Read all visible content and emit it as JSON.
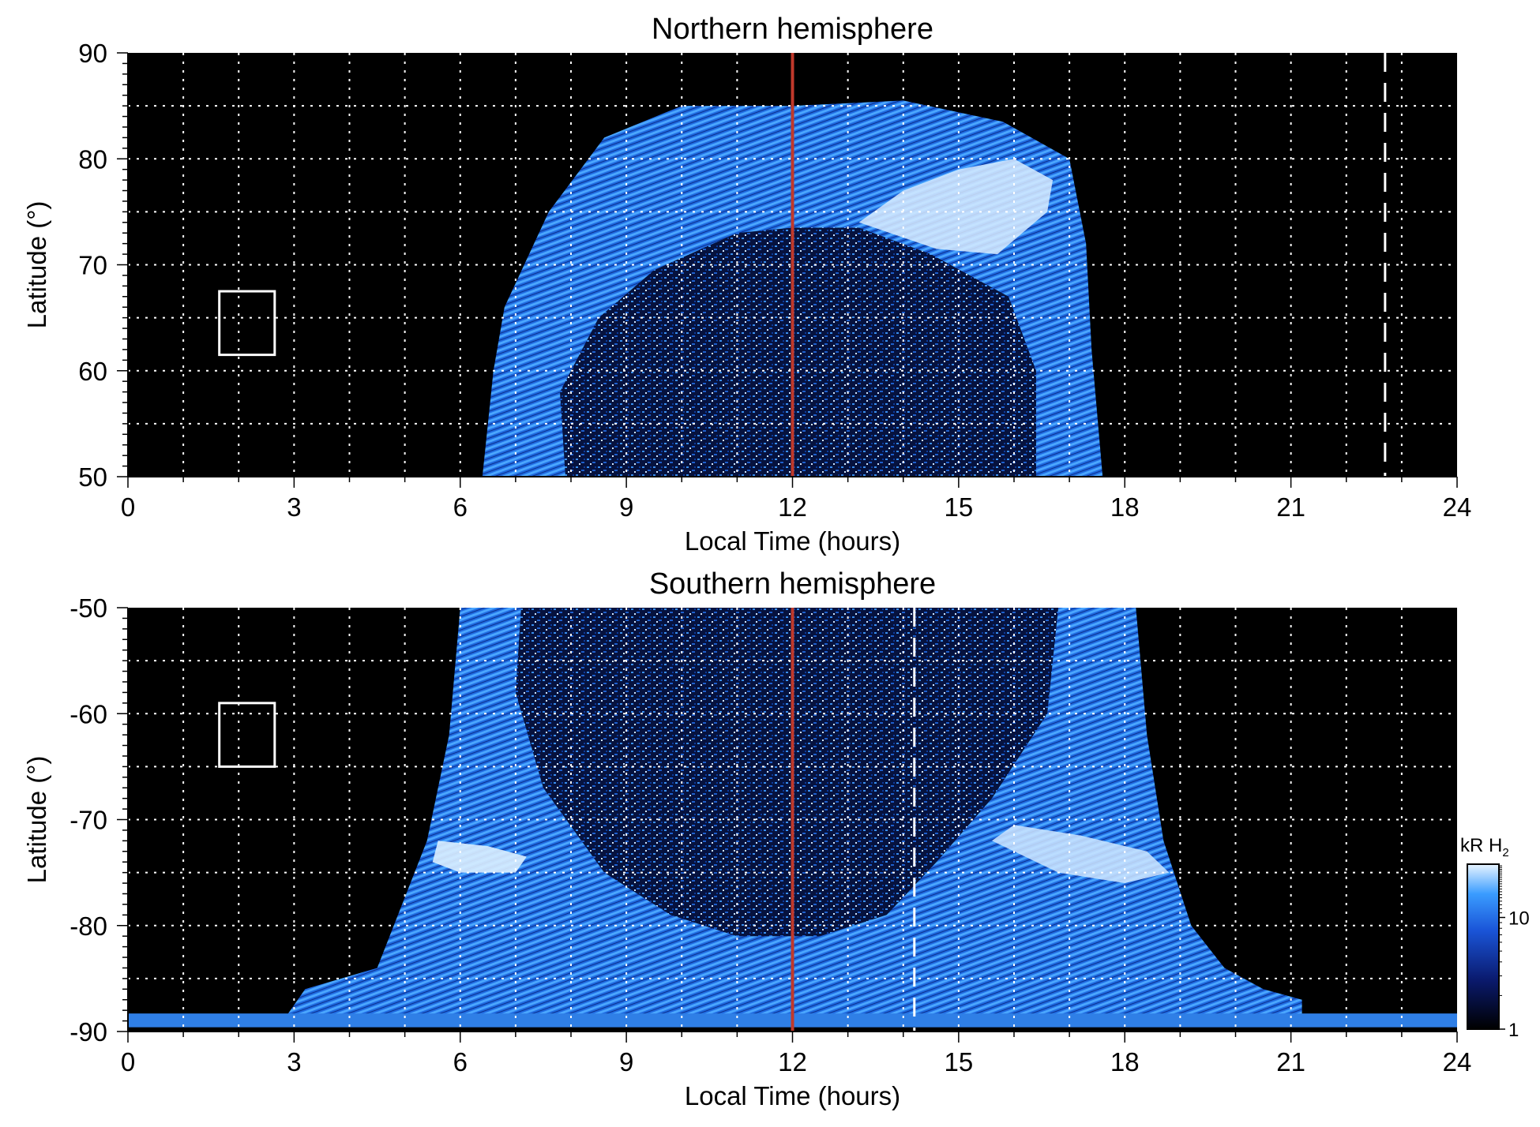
{
  "chart_data": [
    {
      "type": "heatmap",
      "title": "Northern hemisphere",
      "xlabel": "Local Time (hours)",
      "ylabel": "Latitude (°)",
      "xlim": [
        0,
        24
      ],
      "ylim": [
        50,
        90
      ],
      "x_ticks": [
        "0",
        "3",
        "6",
        "9",
        "12",
        "15",
        "18",
        "21",
        "24"
      ],
      "y_ticks": [
        "50",
        "60",
        "70",
        "80",
        "90"
      ],
      "grid": true,
      "noon_line_x": 12,
      "noon_line_color": "#c0392b",
      "dashed_line_x": 22.7,
      "box": {
        "x": [
          1.65,
          2.65
        ],
        "y": [
          61.5,
          67.5
        ]
      },
      "emission_envelope": {
        "outer": [
          [
            6.4,
            50
          ],
          [
            6.6,
            60
          ],
          [
            6.8,
            66
          ],
          [
            7.6,
            75
          ],
          [
            8.6,
            82
          ],
          [
            10,
            85
          ],
          [
            12,
            85
          ],
          [
            14,
            85.5
          ],
          [
            15.8,
            83.5
          ],
          [
            17,
            80
          ],
          [
            17.3,
            72
          ],
          [
            17.4,
            62
          ],
          [
            17.6,
            50
          ]
        ],
        "inner_dark": [
          [
            7.9,
            50
          ],
          [
            7.8,
            58
          ],
          [
            8.5,
            65
          ],
          [
            9.5,
            69.5
          ],
          [
            11,
            73
          ],
          [
            12,
            73.5
          ],
          [
            13.2,
            73.5
          ],
          [
            14.5,
            71
          ],
          [
            15.9,
            67
          ],
          [
            16.4,
            60
          ],
          [
            16.4,
            50
          ]
        ],
        "bright_oval": [
          [
            13.2,
            74
          ],
          [
            14,
            77
          ],
          [
            15,
            79
          ],
          [
            16,
            80
          ],
          [
            16.7,
            78
          ],
          [
            16.6,
            75
          ],
          [
            15.7,
            71
          ],
          [
            14.6,
            71.5
          ]
        ]
      }
    },
    {
      "type": "heatmap",
      "title": "Southern hemisphere",
      "xlabel": "Local Time (hours)",
      "ylabel": "Latitude (°)",
      "xlim": [
        0,
        24
      ],
      "ylim": [
        -90,
        -50
      ],
      "x_ticks": [
        "0",
        "3",
        "6",
        "9",
        "12",
        "15",
        "18",
        "21",
        "24"
      ],
      "y_ticks": [
        "-50",
        "-60",
        "-70",
        "-80",
        "-90"
      ],
      "grid": true,
      "noon_line_x": 12,
      "noon_line_color": "#c0392b",
      "dashed_line_x": 14.2,
      "box": {
        "x": [
          1.65,
          2.65
        ],
        "y": [
          -65,
          -59
        ]
      },
      "emission_envelope": {
        "outer": [
          [
            6.0,
            -50
          ],
          [
            5.8,
            -62
          ],
          [
            5.4,
            -72
          ],
          [
            4.5,
            -84
          ],
          [
            3.2,
            -86
          ],
          [
            2.8,
            -89
          ],
          [
            21.2,
            -89
          ],
          [
            21.2,
            -87
          ],
          [
            20.5,
            -86
          ],
          [
            19.8,
            -84
          ],
          [
            19.2,
            -80
          ],
          [
            18.7,
            -72
          ],
          [
            18.4,
            -62
          ],
          [
            18.2,
            -50
          ]
        ],
        "inner_dark": [
          [
            7.1,
            -50
          ],
          [
            7.0,
            -58
          ],
          [
            7.5,
            -67
          ],
          [
            8.6,
            -75
          ],
          [
            9.8,
            -79
          ],
          [
            11,
            -81
          ],
          [
            12.5,
            -81
          ],
          [
            13.7,
            -79
          ],
          [
            14.6,
            -74
          ],
          [
            15.6,
            -68
          ],
          [
            16.6,
            -60
          ],
          [
            16.8,
            -50
          ]
        ],
        "bright_left": [
          [
            5.6,
            -72
          ],
          [
            6.5,
            -72.5
          ],
          [
            7.2,
            -73.5
          ],
          [
            7.0,
            -75
          ],
          [
            6.0,
            -75
          ],
          [
            5.5,
            -74
          ]
        ],
        "bright_right": [
          [
            15.6,
            -72
          ],
          [
            16.8,
            -75
          ],
          [
            18,
            -76
          ],
          [
            18.8,
            -75
          ],
          [
            18.4,
            -73
          ],
          [
            17.2,
            -71.5
          ],
          [
            16.0,
            -70.5
          ]
        ]
      }
    }
  ],
  "colorbar": {
    "label_main": "kR H",
    "label_sub": "2",
    "tick_labels": [
      "1",
      "10"
    ],
    "scale": "log",
    "range": [
      1,
      30
    ],
    "colors": [
      "#000000",
      "#0a1a6e",
      "#1a55d8",
      "#3a9cff",
      "#e8f4ff"
    ]
  }
}
